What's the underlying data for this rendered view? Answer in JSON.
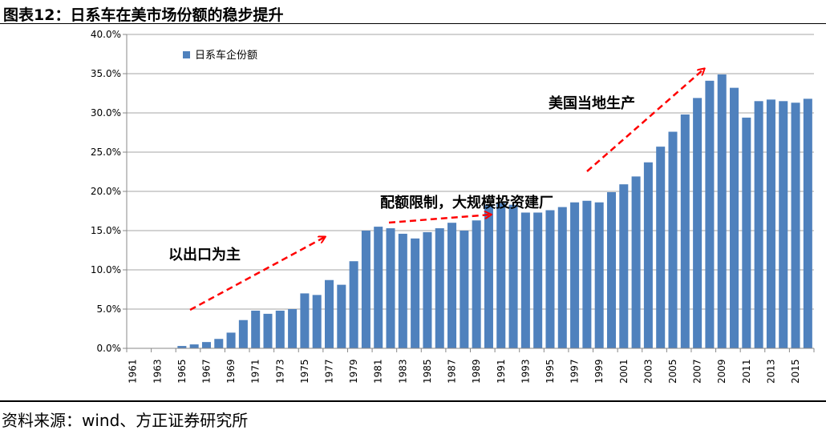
{
  "title": "图表12：日系车在美市场份额的稳步提升",
  "source": "资料来源：wind、方正证券研究所",
  "chart_data": {
    "type": "bar",
    "title": "图表12：日系车在美市场份额的稳步提升",
    "xlabel": "",
    "ylabel": "",
    "ylim": [
      0,
      40
    ],
    "yticks": [
      "0.0%",
      "5.0%",
      "10.0%",
      "15.0%",
      "20.0%",
      "25.0%",
      "30.0%",
      "35.0%",
      "40.0%"
    ],
    "grid": true,
    "legend": {
      "position": "top-left",
      "entries": [
        "日系车企份额"
      ]
    },
    "color": "#4F81BD",
    "categories": [
      "1961",
      "1962",
      "1963",
      "1964",
      "1965",
      "1966",
      "1967",
      "1968",
      "1969",
      "1970",
      "1971",
      "1972",
      "1973",
      "1974",
      "1975",
      "1976",
      "1977",
      "1978",
      "1979",
      "1980",
      "1981",
      "1982",
      "1983",
      "1984",
      "1985",
      "1986",
      "1987",
      "1988",
      "1989",
      "1990",
      "1991",
      "1992",
      "1993",
      "1994",
      "1995",
      "1996",
      "1997",
      "1998",
      "1999",
      "2000",
      "2001",
      "2002",
      "2003",
      "2004",
      "2005",
      "2006",
      "2007",
      "2008",
      "2009",
      "2010",
      "2011",
      "2012",
      "2013",
      "2014",
      "2015",
      "2016"
    ],
    "values": [
      0,
      0,
      0,
      0,
      0.3,
      0.5,
      0.8,
      1.2,
      2.0,
      3.6,
      4.8,
      4.4,
      4.8,
      5.0,
      7.0,
      6.8,
      8.7,
      8.1,
      11.1,
      15.0,
      15.5,
      15.3,
      14.6,
      14.0,
      14.8,
      15.3,
      16.0,
      15.0,
      16.3,
      18.3,
      18.5,
      18.3,
      17.3,
      17.3,
      17.6,
      18.0,
      18.6,
      18.8,
      18.6,
      19.9,
      20.9,
      21.9,
      23.7,
      25.7,
      27.6,
      29.8,
      31.9,
      34.1,
      34.9,
      33.2,
      29.4,
      31.5,
      31.7,
      31.5,
      31.3,
      31.8
    ],
    "annotations": [
      "以出口为主",
      "配额限制，大规模投资建厂",
      "美国当地生产"
    ],
    "annotation_color": "#FF0000"
  }
}
